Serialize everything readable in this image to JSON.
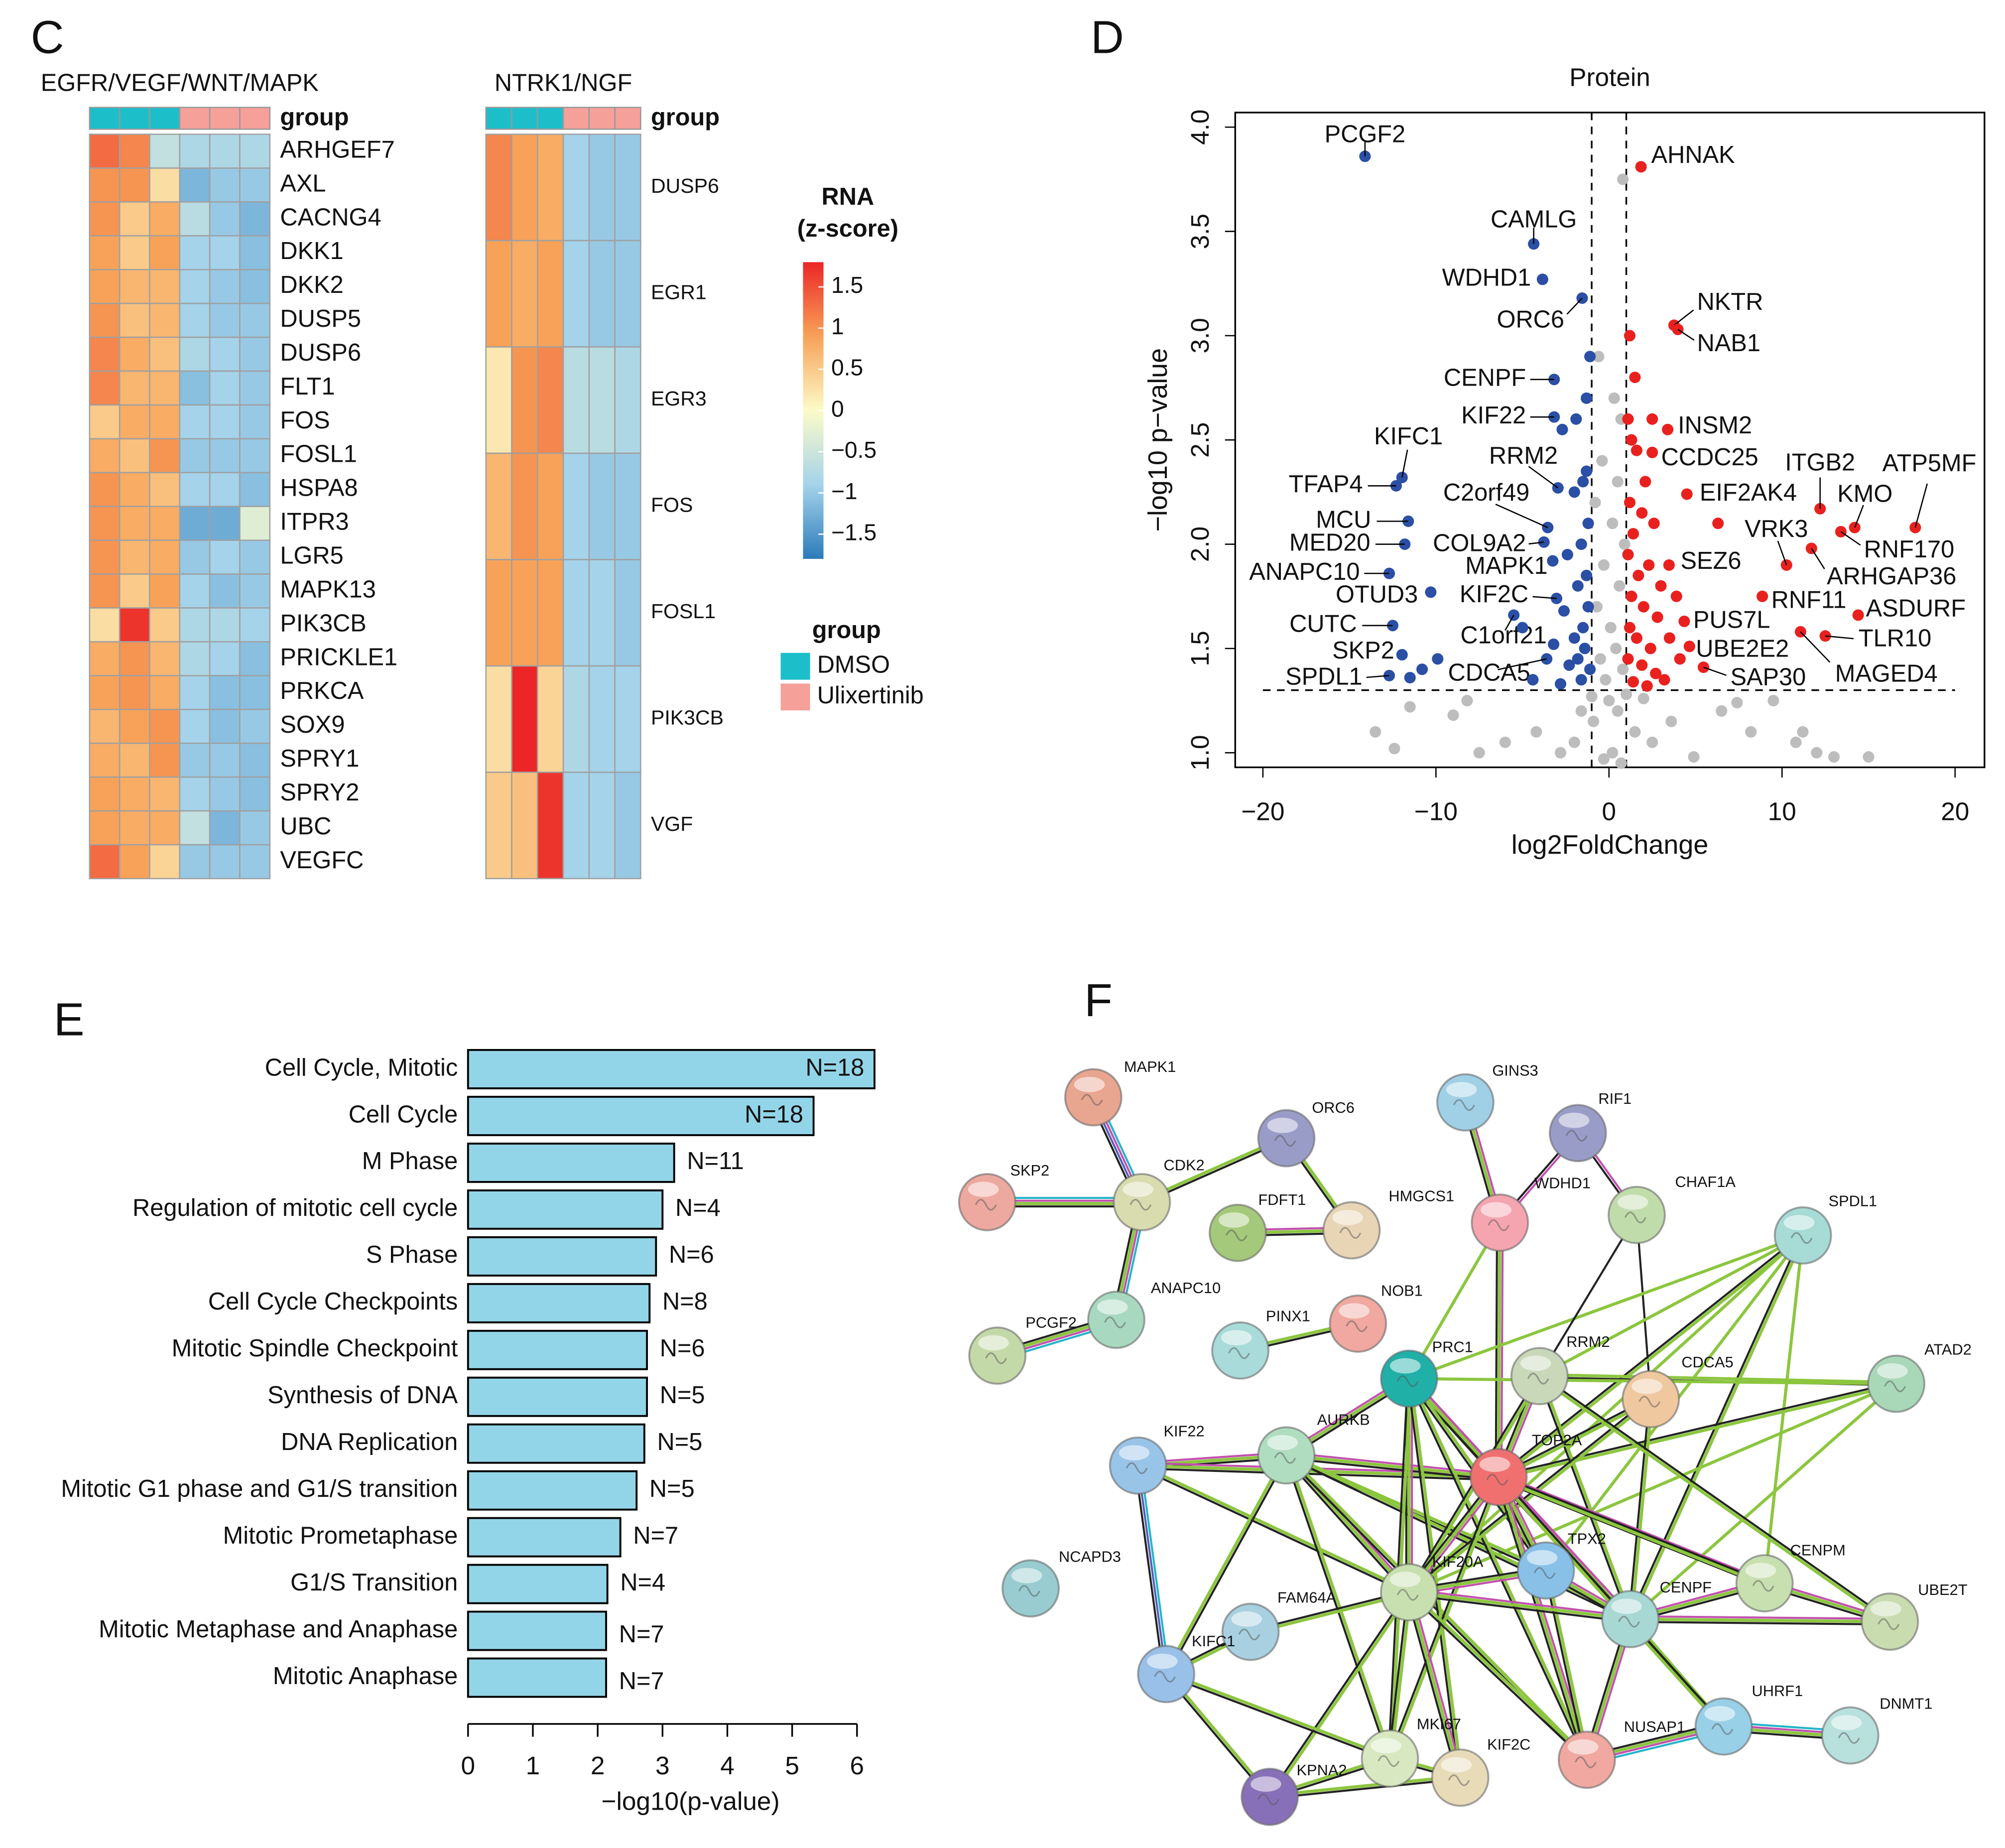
{
  "panel_labels": [
    "C",
    "D",
    "E",
    "F"
  ],
  "chart_data": [
    {
      "type": "heatmap",
      "title": "EGFR/VEGF/WNT/MAPK",
      "group_label": "group",
      "column_colors": [
        "#1cbfc9",
        "#1cbfc9",
        "#1cbfc9",
        "#f6a09a",
        "#f6a09a",
        "#f6a09a"
      ],
      "rows": [
        "ARHGEF7",
        "AXL",
        "CACNG4",
        "DKK1",
        "DKK2",
        "DUSP5",
        "DUSP6",
        "FLT1",
        "FOS",
        "FOSL1",
        "HSPA8",
        "ITPR3",
        "LGR5",
        "MAPK13",
        "PIK3CB",
        "PRICKLE1",
        "PRKCA",
        "SOX9",
        "SPRY1",
        "SPRY2",
        "UBC",
        "VEGFC"
      ],
      "values": [
        [
          1.3,
          1.1,
          -0.6,
          -0.8,
          -0.8,
          -0.8
        ],
        [
          1.0,
          1.0,
          0.3,
          -1.2,
          -1.0,
          -1.0
        ],
        [
          1.0,
          0.5,
          0.8,
          -0.7,
          -1.0,
          -1.2
        ],
        [
          0.9,
          0.5,
          0.9,
          -0.9,
          -0.9,
          -1.1
        ],
        [
          0.9,
          0.7,
          0.7,
          -0.9,
          -1.0,
          -1.1
        ],
        [
          1.0,
          0.6,
          0.7,
          -0.9,
          -1.0,
          -1.0
        ],
        [
          1.1,
          0.8,
          0.6,
          -0.8,
          -0.9,
          -1.0
        ],
        [
          1.1,
          0.7,
          0.7,
          -1.1,
          -0.9,
          -1.0
        ],
        [
          0.5,
          0.8,
          0.8,
          -0.9,
          -0.9,
          -1.0
        ],
        [
          0.8,
          0.6,
          1.0,
          -1.0,
          -1.0,
          -1.0
        ],
        [
          1.0,
          0.8,
          0.6,
          -0.9,
          -0.9,
          -1.1
        ],
        [
          1.0,
          0.8,
          0.8,
          -1.3,
          -1.3,
          -0.3
        ],
        [
          1.0,
          0.7,
          0.8,
          -1.0,
          -0.9,
          -1.0
        ],
        [
          1.0,
          0.5,
          0.9,
          -0.9,
          -1.1,
          -1.0
        ],
        [
          0.3,
          1.7,
          0.5,
          -0.8,
          -0.8,
          -0.9
        ],
        [
          0.8,
          1.0,
          0.7,
          -0.8,
          -0.9,
          -1.1
        ],
        [
          0.9,
          1.0,
          0.8,
          -0.9,
          -1.1,
          -1.1
        ],
        [
          0.7,
          0.9,
          1.0,
          -0.9,
          -1.1,
          -1.0
        ],
        [
          0.8,
          0.7,
          1.0,
          -1.0,
          -1.0,
          -1.1
        ],
        [
          0.9,
          0.8,
          0.7,
          -0.9,
          -1.0,
          -1.1
        ],
        [
          0.9,
          0.8,
          0.8,
          -0.6,
          -1.2,
          -1.0
        ],
        [
          1.3,
          0.9,
          0.4,
          -1.0,
          -1.0,
          -1.0
        ]
      ]
    },
    {
      "type": "heatmap",
      "title": "NTRK1/NGF",
      "group_label": "group",
      "column_colors": [
        "#1cbfc9",
        "#1cbfc9",
        "#1cbfc9",
        "#f6a09a",
        "#f6a09a",
        "#f6a09a"
      ],
      "rows": [
        "DUSP6",
        "EGR1",
        "EGR3",
        "FOS",
        "FOSL1",
        "PIK3CB",
        "VGF"
      ],
      "values": [
        [
          1.1,
          0.9,
          0.8,
          -0.9,
          -1.0,
          -1.0
        ],
        [
          0.9,
          0.8,
          0.9,
          -0.9,
          -1.0,
          -1.0
        ],
        [
          0.2,
          1.0,
          1.1,
          -0.7,
          -0.7,
          -0.8
        ],
        [
          0.7,
          1.0,
          0.9,
          -0.9,
          -1.0,
          -1.0
        ],
        [
          0.9,
          0.9,
          0.9,
          -0.9,
          -0.9,
          -1.0
        ],
        [
          0.3,
          1.8,
          0.4,
          -0.8,
          -0.9,
          -0.9
        ],
        [
          0.5,
          0.6,
          1.7,
          -0.9,
          -0.9,
          -1.0
        ]
      ],
      "colorbar": {
        "title": [
          "RNA",
          "(z-score)"
        ],
        "lim": [
          -1.8,
          1.8
        ],
        "colormap": [
          "#2b7bba",
          "#a4d3ea",
          "#fcfbc8",
          "#f7a258",
          "#ec2626"
        ],
        "ticks": [
          1.5,
          1,
          0.5,
          0,
          {
            "value": -0.5,
            "label": "−0.5"
          },
          {
            "value": -1,
            "label": "−1"
          },
          {
            "value": -1.5,
            "label": "−1.5"
          }
        ]
      },
      "group_legend": {
        "title": "group",
        "names": [
          "DMSO",
          "Ulixertinib"
        ],
        "colors": [
          "#1cbfc9",
          "#f6a09a"
        ]
      }
    },
    {
      "type": "scatter",
      "title": "Protein",
      "xlabel": "log2FoldChange",
      "ylabel": "−log10 p−value",
      "xlim": [
        -21.6,
        21.7
      ],
      "ylim": [
        0.93,
        4.07
      ],
      "xticks": [
        {
          "value": -20,
          "label": "−20"
        },
        {
          "value": -10,
          "label": "−10"
        },
        0,
        10,
        20
      ],
      "yticks": [
        {
          "value": 1,
          "label": "1.0"
        },
        1.5,
        {
          "value": 2,
          "label": "2.0"
        },
        2.5,
        {
          "value": 3,
          "label": "3.0"
        },
        3.5,
        {
          "value": 4,
          "label": "4.0"
        }
      ],
      "thresholds": {
        "x": [
          -1,
          1
        ],
        "y": 1.3
      },
      "series": [
        {
          "color": "#bdbdbd",
          "x": [
            0.8,
            -0.6,
            0.3,
            0.7,
            -0.4,
            0.5,
            -0.8,
            0.2,
            0.9,
            -0.3,
            0.6,
            -0.7,
            0.1,
            0.4,
            -0.5,
            0.8,
            -0.2,
            0.0,
            0.5,
            -0.9,
            1.5,
            -1.6,
            2.5,
            -2.8,
            3.6,
            -4.2,
            4.9,
            -6.0,
            6.5,
            -7.5,
            8.2,
            -9.0,
            10.8,
            -11.5,
            11.2,
            12.0,
            13.0,
            15.0,
            -12.4,
            -13.5,
            -8.2,
            7.4,
            0.2,
            -0.3,
            0.7,
            1.0,
            -1.0,
            2.0,
            -2.0,
            9.5
          ],
          "values": [
            3.75,
            2.9,
            2.7,
            2.6,
            2.4,
            2.3,
            2.2,
            2.1,
            2.0,
            1.9,
            1.8,
            1.7,
            1.6,
            1.5,
            1.45,
            1.4,
            1.35,
            1.25,
            1.2,
            1.15,
            1.1,
            1.2,
            1.05,
            1.0,
            1.15,
            1.1,
            0.98,
            1.05,
            1.2,
            1.0,
            1.1,
            1.18,
            1.05,
            1.22,
            1.1,
            1.0,
            0.98,
            0.98,
            1.02,
            1.1,
            1.25,
            1.24,
            1.0,
            0.97,
            0.95,
            1.28,
            1.27,
            1.26,
            1.05,
            1.25
          ]
        },
        {
          "color": "#2a4fa5",
          "x": [
            -14.1,
            -4.35,
            -3.84,
            -1.55,
            -3.17,
            -3.17,
            -11.96,
            -12.3,
            -2.95,
            -3.54,
            -11.6,
            -3.76,
            -11.8,
            -3.25,
            -12.7,
            -3.03,
            -10.3,
            -12.5,
            -5.5,
            -11.96,
            -12.7,
            -3.6,
            -1.1,
            -1.3,
            -1.5,
            -2.0,
            -1.2,
            -1.6,
            -2.4,
            -1.3,
            -1.8,
            -1.2,
            -2.6,
            -1.5,
            -2.0,
            -3.2,
            -1.4,
            -1.8,
            -2.3,
            -1.1,
            -1.6,
            -2.8,
            -10.8,
            -9.9,
            -11.5,
            -5.0,
            -4.4,
            -1.9,
            -1.3,
            -2.7
          ],
          "values": [
            3.86,
            3.44,
            3.27,
            3.18,
            2.79,
            2.61,
            2.32,
            2.28,
            2.27,
            2.08,
            2.11,
            2.01,
            2.0,
            1.92,
            1.86,
            1.74,
            1.77,
            1.61,
            1.66,
            1.47,
            1.37,
            1.45,
            2.9,
            2.35,
            2.3,
            2.25,
            2.1,
            2.0,
            1.95,
            1.85,
            1.8,
            1.7,
            1.68,
            1.6,
            1.55,
            1.52,
            1.5,
            1.45,
            1.42,
            1.4,
            1.35,
            1.33,
            1.4,
            1.45,
            1.36,
            1.6,
            1.35,
            2.6,
            2.7,
            2.55
          ],
          "labels": [
            "PCGF2",
            "CAMLG",
            "WDHD1",
            "ORC6",
            "CENPF",
            "KIF22",
            "KIFC1",
            "TFAP4",
            "RRM2",
            "C2orf49",
            "MCU",
            "COL9A2",
            "MED20",
            "MAPK1",
            "ANAPC10",
            "KIF2C",
            "OTUD3",
            "CUTC",
            "C1orf21",
            "SKP2",
            "SPDL1",
            "CDCA5",
            null,
            null,
            null,
            null,
            null,
            null,
            null,
            null,
            null,
            null,
            null,
            null,
            null,
            null,
            null,
            null,
            null,
            null,
            null,
            null,
            null,
            null,
            null,
            null,
            null,
            null,
            null,
            null
          ]
        },
        {
          "color": "#e8211f",
          "x": [
            1.85,
            3.76,
            3.98,
            3.39,
            2.5,
            12.2,
            17.7,
            14.2,
            4.5,
            10.26,
            13.4,
            11.7,
            3.47,
            8.86,
            14.4,
            4.35,
            12.5,
            4.65,
            11.07,
            5.46,
            1.2,
            1.5,
            1.1,
            1.3,
            2.1,
            1.2,
            1.9,
            2.6,
            1.4,
            1.1,
            2.3,
            1.7,
            3.0,
            1.3,
            2.0,
            2.8,
            1.2,
            1.6,
            2.4,
            3.5,
            1.1,
            1.9,
            2.7,
            1.4,
            2.2,
            4.1,
            3.2,
            1.6,
            2.5,
            3.9,
            6.3
          ],
          "values": [
            3.81,
            3.05,
            3.03,
            2.55,
            2.44,
            2.17,
            2.08,
            2.08,
            2.24,
            1.9,
            2.06,
            1.98,
            1.9,
            1.75,
            1.66,
            1.63,
            1.56,
            1.51,
            1.58,
            1.41,
            3.0,
            2.8,
            2.6,
            2.5,
            2.3,
            2.2,
            2.15,
            2.1,
            2.05,
            1.95,
            1.9,
            1.85,
            1.8,
            1.75,
            1.7,
            1.65,
            1.6,
            1.55,
            1.5,
            1.55,
            1.45,
            1.42,
            1.38,
            1.34,
            1.32,
            1.45,
            1.35,
            2.45,
            2.6,
            1.75,
            2.1
          ],
          "labels": [
            "AHNAK",
            "NKTR",
            "NAB1",
            "INSM2",
            "CCDC25",
            "ITGB2",
            "ATP5MF",
            "KMO",
            "EIF2AK4",
            "VRK3",
            "RNF170",
            "ARHGAP36",
            "SEZ6",
            "RNF11",
            "ASDURF",
            "PUS7L",
            "TLR10",
            "UBE2E2",
            "MAGED4",
            "SAP30",
            null,
            null,
            null,
            null,
            null,
            null,
            null,
            null,
            null,
            null,
            null,
            null,
            null,
            null,
            null,
            null,
            null,
            null,
            null,
            null,
            null,
            null,
            null,
            null,
            null,
            null,
            null,
            null,
            null,
            null,
            null
          ]
        }
      ]
    },
    {
      "type": "bar",
      "orientation": "horizontal",
      "xlabel": "−log10(p-value)",
      "color": "#93d5e8",
      "categories": [
        "Cell Cycle, Mitotic",
        "Cell Cycle",
        "M Phase",
        "Regulation of mitotic cell cycle",
        "S Phase",
        "Cell Cycle Checkpoints",
        "Mitotic Spindle Checkpoint",
        "Synthesis of DNA",
        "DNA Replication",
        "Mitotic G1 phase and G1/S transition",
        "Mitotic Prometaphase",
        "G1/S Transition",
        "Mitotic Metaphase and Anaphase",
        "Mitotic Anaphase"
      ],
      "values": [
        6.27,
        5.33,
        3.18,
        3.0,
        2.9,
        2.8,
        2.76,
        2.76,
        2.72,
        2.6,
        2.35,
        2.15,
        2.13,
        2.13
      ],
      "annotations": [
        "N=18",
        "N=18",
        "N=11",
        "N=4",
        "N=6",
        "N=8",
        "N=6",
        "N=5",
        "N=5",
        "N=5",
        "N=7",
        "N=4",
        "N=7",
        "N=7"
      ],
      "xlim": [
        0,
        6.3
      ],
      "xticks": [
        0,
        1,
        2,
        3,
        4,
        5,
        6
      ]
    }
  ],
  "network": {
    "nodes": [
      "MAPK1",
      "SKP2",
      "CDK2",
      "ORC6",
      "GINS3",
      "RIF1",
      "FDFT1",
      "HMGCS1",
      "WDHD1",
      "CHAF1A",
      "SPDL1",
      "ANAPC10",
      "NOB1",
      "PCGF2",
      "PINX1",
      "PRC1",
      "RRM2",
      "CDCA5",
      "ATAD2",
      "KIF22",
      "AURKB",
      "TOP2A",
      "TPX2",
      "NCAPD3",
      "KIF20A",
      "FAM64A",
      "CENPF",
      "CENPM",
      "UBE2T",
      "KIFC1",
      "UHRF1",
      "DNMT1",
      "MKI67",
      "KIF2C",
      "NUSAP1",
      "KPNA2"
    ]
  }
}
